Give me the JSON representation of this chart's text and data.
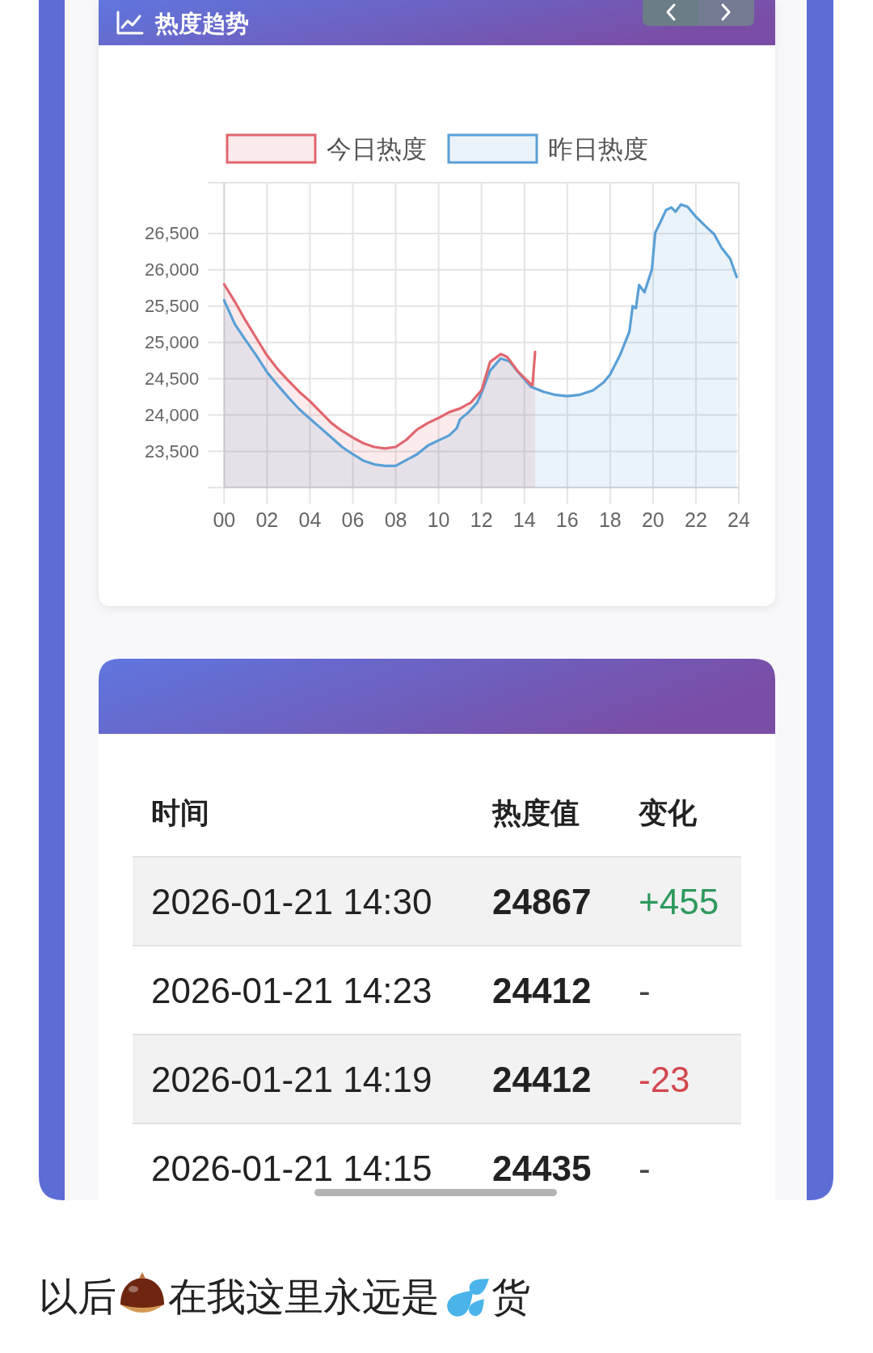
{
  "chart_data": [
    {
      "type": "area",
      "title": "热度趋势",
      "legend": "top",
      "grid": true,
      "xlim": [
        0,
        24
      ],
      "xticks": [
        {
          "value": 0,
          "label": "00"
        },
        {
          "value": 2,
          "label": "02"
        },
        {
          "value": 4,
          "label": "04"
        },
        {
          "value": 6,
          "label": "06"
        },
        {
          "value": 8,
          "label": "08"
        },
        {
          "value": 10,
          "label": "10"
        },
        {
          "value": 12,
          "label": "12"
        },
        {
          "value": 14,
          "label": "14"
        },
        {
          "value": 16,
          "label": "16"
        },
        {
          "value": 18,
          "label": "18"
        },
        {
          "value": 20,
          "label": "20"
        },
        {
          "value": 22,
          "label": "22"
        },
        {
          "value": 24,
          "label": "24"
        }
      ],
      "ylim": [
        23000,
        27200
      ],
      "yticks": [
        {
          "value": 23000,
          "label": null
        },
        {
          "value": 23500,
          "label": "23,500"
        },
        {
          "value": 24000,
          "label": "24,000"
        },
        {
          "value": 24500,
          "label": "24,500"
        },
        {
          "value": 25000,
          "label": "25,000"
        },
        {
          "value": 25500,
          "label": "25,500"
        },
        {
          "value": 26000,
          "label": "26,000"
        },
        {
          "value": 26500,
          "label": "26,500"
        },
        {
          "value": 27200,
          "label": null
        }
      ],
      "series": [
        {
          "name": "今日热度",
          "color": "#e0676e",
          "x": [
            0,
            0.5,
            1,
            1.5,
            2,
            2.5,
            3,
            3.5,
            4,
            4.5,
            5,
            5.5,
            6,
            6.5,
            7,
            7.5,
            8,
            8.5,
            9,
            9.5,
            10,
            10.5,
            11,
            11.5,
            12,
            12.4,
            12.9,
            13.2,
            13.7,
            14.25,
            14.32,
            14.38,
            14.5
          ],
          "values": [
            25800,
            25560,
            25300,
            25060,
            24820,
            24630,
            24470,
            24320,
            24190,
            24040,
            23890,
            23780,
            23690,
            23610,
            23560,
            23540,
            23560,
            23660,
            23800,
            23890,
            23960,
            24040,
            24090,
            24170,
            24340,
            24730,
            24840,
            24800,
            24600,
            24440,
            24410,
            24410,
            24870
          ]
        },
        {
          "name": "昨日热度",
          "color": "#5aa0d6",
          "x": [
            0,
            0.5,
            1,
            1.5,
            2,
            2.5,
            3,
            3.5,
            4,
            4.5,
            5,
            5.5,
            6,
            6.5,
            7,
            7.5,
            8,
            8.5,
            9,
            9.5,
            10,
            10.5,
            10.85,
            11,
            11.4,
            11.8,
            12,
            12.4,
            12.9,
            13.3,
            13.8,
            14.3,
            14.9,
            15.4,
            16,
            16.6,
            17.2,
            17.7,
            18,
            18.45,
            18.9,
            19.05,
            19.2,
            19.35,
            19.6,
            19.95,
            20.1,
            20.35,
            20.6,
            20.85,
            21.05,
            21.3,
            21.6,
            22,
            22.45,
            22.85,
            23.2,
            23.6,
            23.9
          ],
          "values": [
            25580,
            25250,
            25030,
            24820,
            24590,
            24410,
            24240,
            24080,
            23950,
            23820,
            23690,
            23560,
            23460,
            23370,
            23320,
            23300,
            23300,
            23380,
            23460,
            23580,
            23650,
            23720,
            23820,
            23940,
            24040,
            24170,
            24300,
            24610,
            24780,
            24740,
            24560,
            24390,
            24320,
            24280,
            24260,
            24280,
            24340,
            24450,
            24560,
            24820,
            25150,
            25500,
            25470,
            25790,
            25690,
            26010,
            26510,
            26660,
            26820,
            26860,
            26800,
            26900,
            26870,
            26730,
            26600,
            26490,
            26300,
            26150,
            25900
          ]
        }
      ]
    },
    {
      "type": "other",
      "annotations": [
        "时间",
        "热度值",
        "变化",
        "2026-01-21 14:30",
        "24867",
        "+455",
        "2026-01-21 14:23",
        "24412",
        "-",
        "2026-01-21 14:19",
        "24412",
        "-23",
        "2026-01-21 14:15",
        "24435",
        "-"
      ]
    },
    {
      "type": "other",
      "annotations": [
        "以后",
        "在我这里永远是",
        "货"
      ]
    }
  ]
}
